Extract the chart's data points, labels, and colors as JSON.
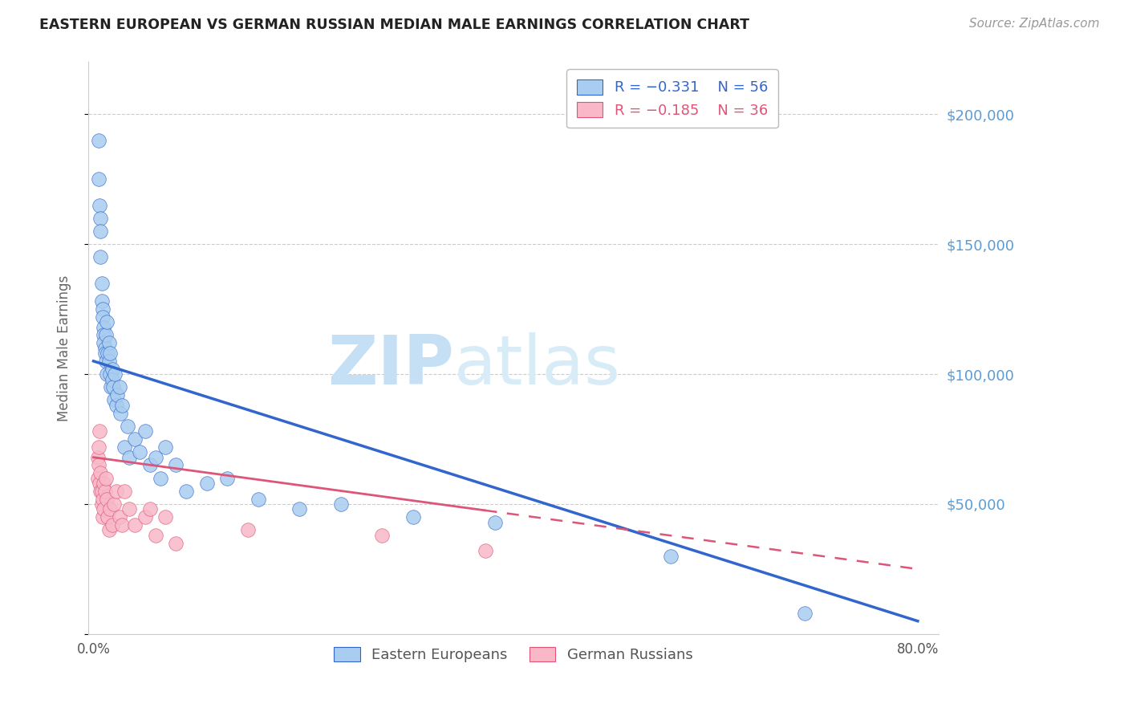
{
  "title": "EASTERN EUROPEAN VS GERMAN RUSSIAN MEDIAN MALE EARNINGS CORRELATION CHART",
  "source": "Source: ZipAtlas.com",
  "ylabel": "Median Male Earnings",
  "xlim": [
    -0.005,
    0.82
  ],
  "ylim": [
    0,
    220000
  ],
  "yticks": [
    0,
    50000,
    100000,
    150000,
    200000
  ],
  "ytick_labels": [
    "",
    "$50,000",
    "$100,000",
    "$150,000",
    "$200,000"
  ],
  "blue_label": "Eastern Europeans",
  "pink_label": "German Russians",
  "blue_R": "R = −0.331",
  "blue_N": "N = 56",
  "pink_R": "R = −0.185",
  "pink_N": "N = 36",
  "blue_color": "#a8cdf0",
  "pink_color": "#f8b8c8",
  "blue_line_color": "#3366cc",
  "pink_line_color": "#dd5577",
  "watermark": "ZIPatlas",
  "watermark_color": "#d0e8f8",
  "background_color": "#ffffff",
  "grid_color": "#cccccc",
  "blue_x": [
    0.005,
    0.005,
    0.006,
    0.007,
    0.007,
    0.007,
    0.008,
    0.008,
    0.009,
    0.009,
    0.01,
    0.01,
    0.01,
    0.011,
    0.011,
    0.012,
    0.012,
    0.013,
    0.013,
    0.014,
    0.015,
    0.015,
    0.016,
    0.016,
    0.017,
    0.018,
    0.018,
    0.019,
    0.02,
    0.021,
    0.022,
    0.023,
    0.025,
    0.026,
    0.028,
    0.03,
    0.033,
    0.035,
    0.04,
    0.045,
    0.05,
    0.055,
    0.06,
    0.065,
    0.07,
    0.08,
    0.09,
    0.11,
    0.13,
    0.16,
    0.2,
    0.24,
    0.31,
    0.39,
    0.56,
    0.69
  ],
  "blue_y": [
    190000,
    175000,
    165000,
    160000,
    155000,
    145000,
    135000,
    128000,
    125000,
    122000,
    118000,
    115000,
    112000,
    110000,
    108000,
    115000,
    105000,
    120000,
    100000,
    108000,
    112000,
    105000,
    100000,
    108000,
    95000,
    102000,
    98000,
    95000,
    90000,
    100000,
    88000,
    92000,
    95000,
    85000,
    88000,
    72000,
    80000,
    68000,
    75000,
    70000,
    78000,
    65000,
    68000,
    60000,
    72000,
    65000,
    55000,
    58000,
    60000,
    52000,
    48000,
    50000,
    45000,
    43000,
    30000,
    8000
  ],
  "pink_x": [
    0.004,
    0.004,
    0.005,
    0.005,
    0.006,
    0.006,
    0.007,
    0.007,
    0.008,
    0.008,
    0.009,
    0.009,
    0.01,
    0.01,
    0.011,
    0.012,
    0.013,
    0.014,
    0.015,
    0.016,
    0.018,
    0.02,
    0.022,
    0.025,
    0.028,
    0.03,
    0.035,
    0.04,
    0.05,
    0.055,
    0.06,
    0.07,
    0.08,
    0.15,
    0.28,
    0.38
  ],
  "pink_y": [
    68000,
    60000,
    72000,
    65000,
    78000,
    58000,
    62000,
    55000,
    50000,
    55000,
    45000,
    52000,
    48000,
    58000,
    55000,
    60000,
    52000,
    45000,
    40000,
    48000,
    42000,
    50000,
    55000,
    45000,
    42000,
    55000,
    48000,
    42000,
    45000,
    48000,
    38000,
    45000,
    35000,
    40000,
    38000,
    32000
  ],
  "blue_trend_x0": 0.0,
  "blue_trend_y0": 105000,
  "blue_trend_x1": 0.8,
  "blue_trend_y1": 5000,
  "pink_trend_x0": 0.0,
  "pink_trend_y0": 68000,
  "pink_trend_x1": 0.8,
  "pink_trend_y1": 25000
}
